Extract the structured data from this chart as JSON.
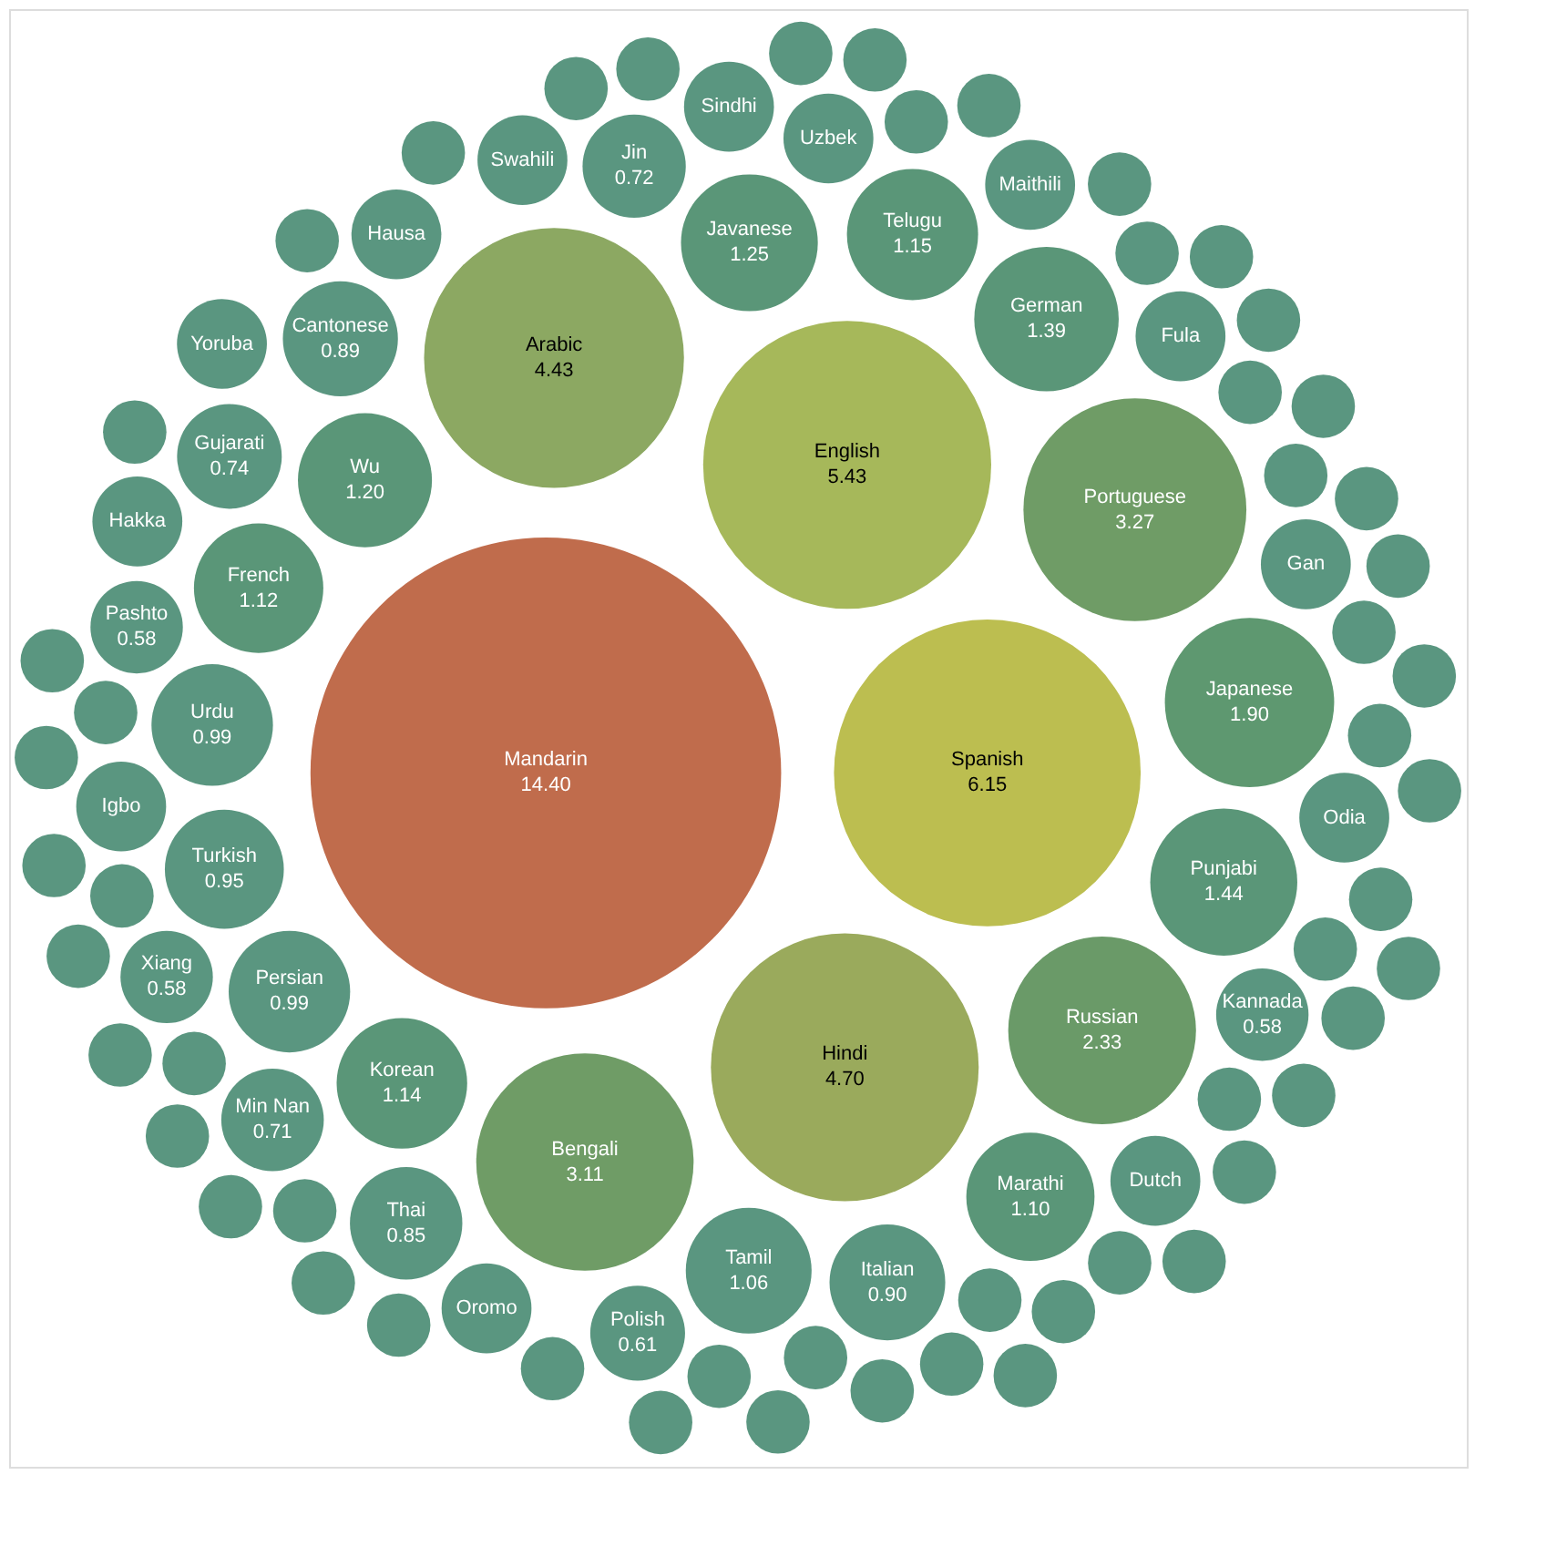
{
  "chart_data": {
    "type": "other",
    "categories": [
      "Mandarin",
      "Spanish",
      "English",
      "Hindi",
      "Arabic",
      "Portuguese",
      "Bengali",
      "Russian",
      "Japanese",
      "Punjabi",
      "German",
      "Javanese",
      "Wu",
      "Telugu",
      "Korean",
      "French",
      "Marathi",
      "Tamil",
      "Persian",
      "Urdu",
      "Turkish",
      "Italian",
      "Cantonese",
      "Thai",
      "Gujarati",
      "Jin",
      "Min Nan",
      "Polish",
      "Kannada",
      "Pashto",
      "Xiang",
      "Igbo",
      "Oromo",
      "Hausa",
      "Dutch",
      "Gan",
      "Fula",
      "Uzbek",
      "Swahili",
      "Hakka",
      "Odia",
      "Sindhi",
      "Maithili",
      "Yoruba",
      null,
      null,
      null,
      null,
      null,
      null,
      null,
      null,
      null,
      null,
      null,
      null,
      null,
      null,
      null,
      null,
      null,
      null,
      null,
      null,
      null,
      null,
      null,
      null,
      null,
      null,
      null,
      null,
      null,
      null,
      null,
      null,
      null,
      null,
      null,
      null,
      null,
      null,
      null,
      null,
      null,
      null,
      null,
      null,
      null,
      null,
      null,
      null,
      null,
      null,
      null,
      null,
      null,
      null
    ],
    "values": [
      14.4,
      6.15,
      5.43,
      4.7,
      4.43,
      3.27,
      3.11,
      2.33,
      1.9,
      1.44,
      1.39,
      1.25,
      1.2,
      1.15,
      1.14,
      1.12,
      1.1,
      1.06,
      0.99,
      0.99,
      0.95,
      0.9,
      0.89,
      0.85,
      0.74,
      0.72,
      0.71,
      0.61,
      0.58,
      0.58,
      0.58,
      null,
      null,
      null,
      null,
      null,
      null,
      null,
      null,
      null,
      null,
      null,
      null,
      null,
      null,
      null,
      null,
      null,
      null,
      null,
      null,
      null,
      null,
      null,
      null,
      null,
      null,
      null,
      null,
      null,
      null,
      null,
      null,
      null,
      null,
      null,
      null,
      null,
      null,
      null,
      null,
      null,
      null,
      null,
      null,
      null,
      null,
      null,
      null,
      null,
      null,
      null,
      null,
      null,
      null,
      null,
      null,
      null,
      null,
      null,
      null,
      null,
      null,
      null,
      null,
      null,
      null,
      null
    ],
    "value_labels": [
      "14.40",
      "6.15",
      "5.43",
      "4.70",
      "4.43",
      "3.27",
      "3.11",
      "2.33",
      "1.90",
      "1.44",
      "1.39",
      "1.25",
      "1.20",
      "1.15",
      "1.14",
      "1.12",
      "1.10",
      "1.06",
      "0.99",
      "0.99",
      "0.95",
      "0.90",
      "0.89",
      "0.85",
      "0.74",
      "0.72",
      "0.71",
      "0.61",
      "0.58",
      "0.58",
      "0.58",
      null,
      null,
      null,
      null,
      null,
      null,
      null,
      null,
      null,
      null,
      null,
      null,
      null,
      null,
      null,
      null,
      null,
      null,
      null,
      null,
      null,
      null,
      null,
      null,
      null,
      null,
      null,
      null,
      null,
      null,
      null,
      null,
      null,
      null,
      null,
      null,
      null,
      null,
      null,
      null,
      null,
      null,
      null,
      null,
      null,
      null,
      null,
      null,
      null,
      null,
      null,
      null,
      null,
      null,
      null,
      null,
      null,
      null,
      null,
      null,
      null,
      null,
      null,
      null,
      null,
      null,
      null
    ],
    "colors": [
      "#c06c4c",
      "#bcbe50",
      "#a6b85a",
      "#9aaa5c",
      "#8ca862",
      "#6f9c66",
      "#6f9c66",
      "#6a9a68",
      "#5e9870",
      "#5a9678",
      "#5a9678",
      "#5a9678",
      "#5a9678",
      "#5a9678",
      "#5a9678",
      "#5a9678",
      "#5a9678",
      "#5a9680",
      "#5a9680",
      "#5a9680",
      "#5a9680",
      "#5a9680",
      "#5a9680",
      "#5a9680",
      "#5a9680",
      "#5a9680",
      "#5a9680",
      "#5a9680",
      "#5a9680",
      "#5a9680",
      "#5a9680",
      "#5a9680",
      "#5a9680",
      "#5a9680",
      "#5a9680",
      "#5a9680",
      "#5a9680",
      "#5a9680",
      "#5a9680",
      "#5a9680",
      "#5a9680",
      "#5a9680",
      "#5a9680",
      "#5a9680",
      "#5a9680",
      "#5a9680",
      "#5a9680",
      "#5a9680",
      "#5a9680",
      "#5a9680",
      "#5a9680",
      "#5a9680",
      "#5a9680",
      "#5a9680",
      "#5a9680",
      "#5a9680",
      "#5a9680",
      "#5a9680",
      "#5a9680",
      "#5a9680",
      "#5a9680",
      "#5a9680",
      "#5a9680",
      "#5a9680",
      "#5a9680",
      "#5a9680",
      "#5a9680",
      "#5a9680",
      "#5a9680",
      "#5a9680",
      "#5a9680",
      "#5a9680",
      "#5a9680",
      "#5a9680",
      "#5a9680",
      "#5a9680",
      "#5a9680",
      "#5a9680",
      "#5a9680",
      "#5a9680",
      "#5a9680",
      "#5a9680",
      "#5a9680",
      "#5a9680",
      "#5a9680",
      "#5a9680",
      "#5a9680",
      "#5a9680",
      "#5a9680",
      "#5a9680",
      "#5a9680",
      "#5a9680",
      "#5a9680",
      "#5a9680",
      "#5a9680",
      "#5a9680",
      "#5a9680",
      "#5a9680"
    ]
  }
}
